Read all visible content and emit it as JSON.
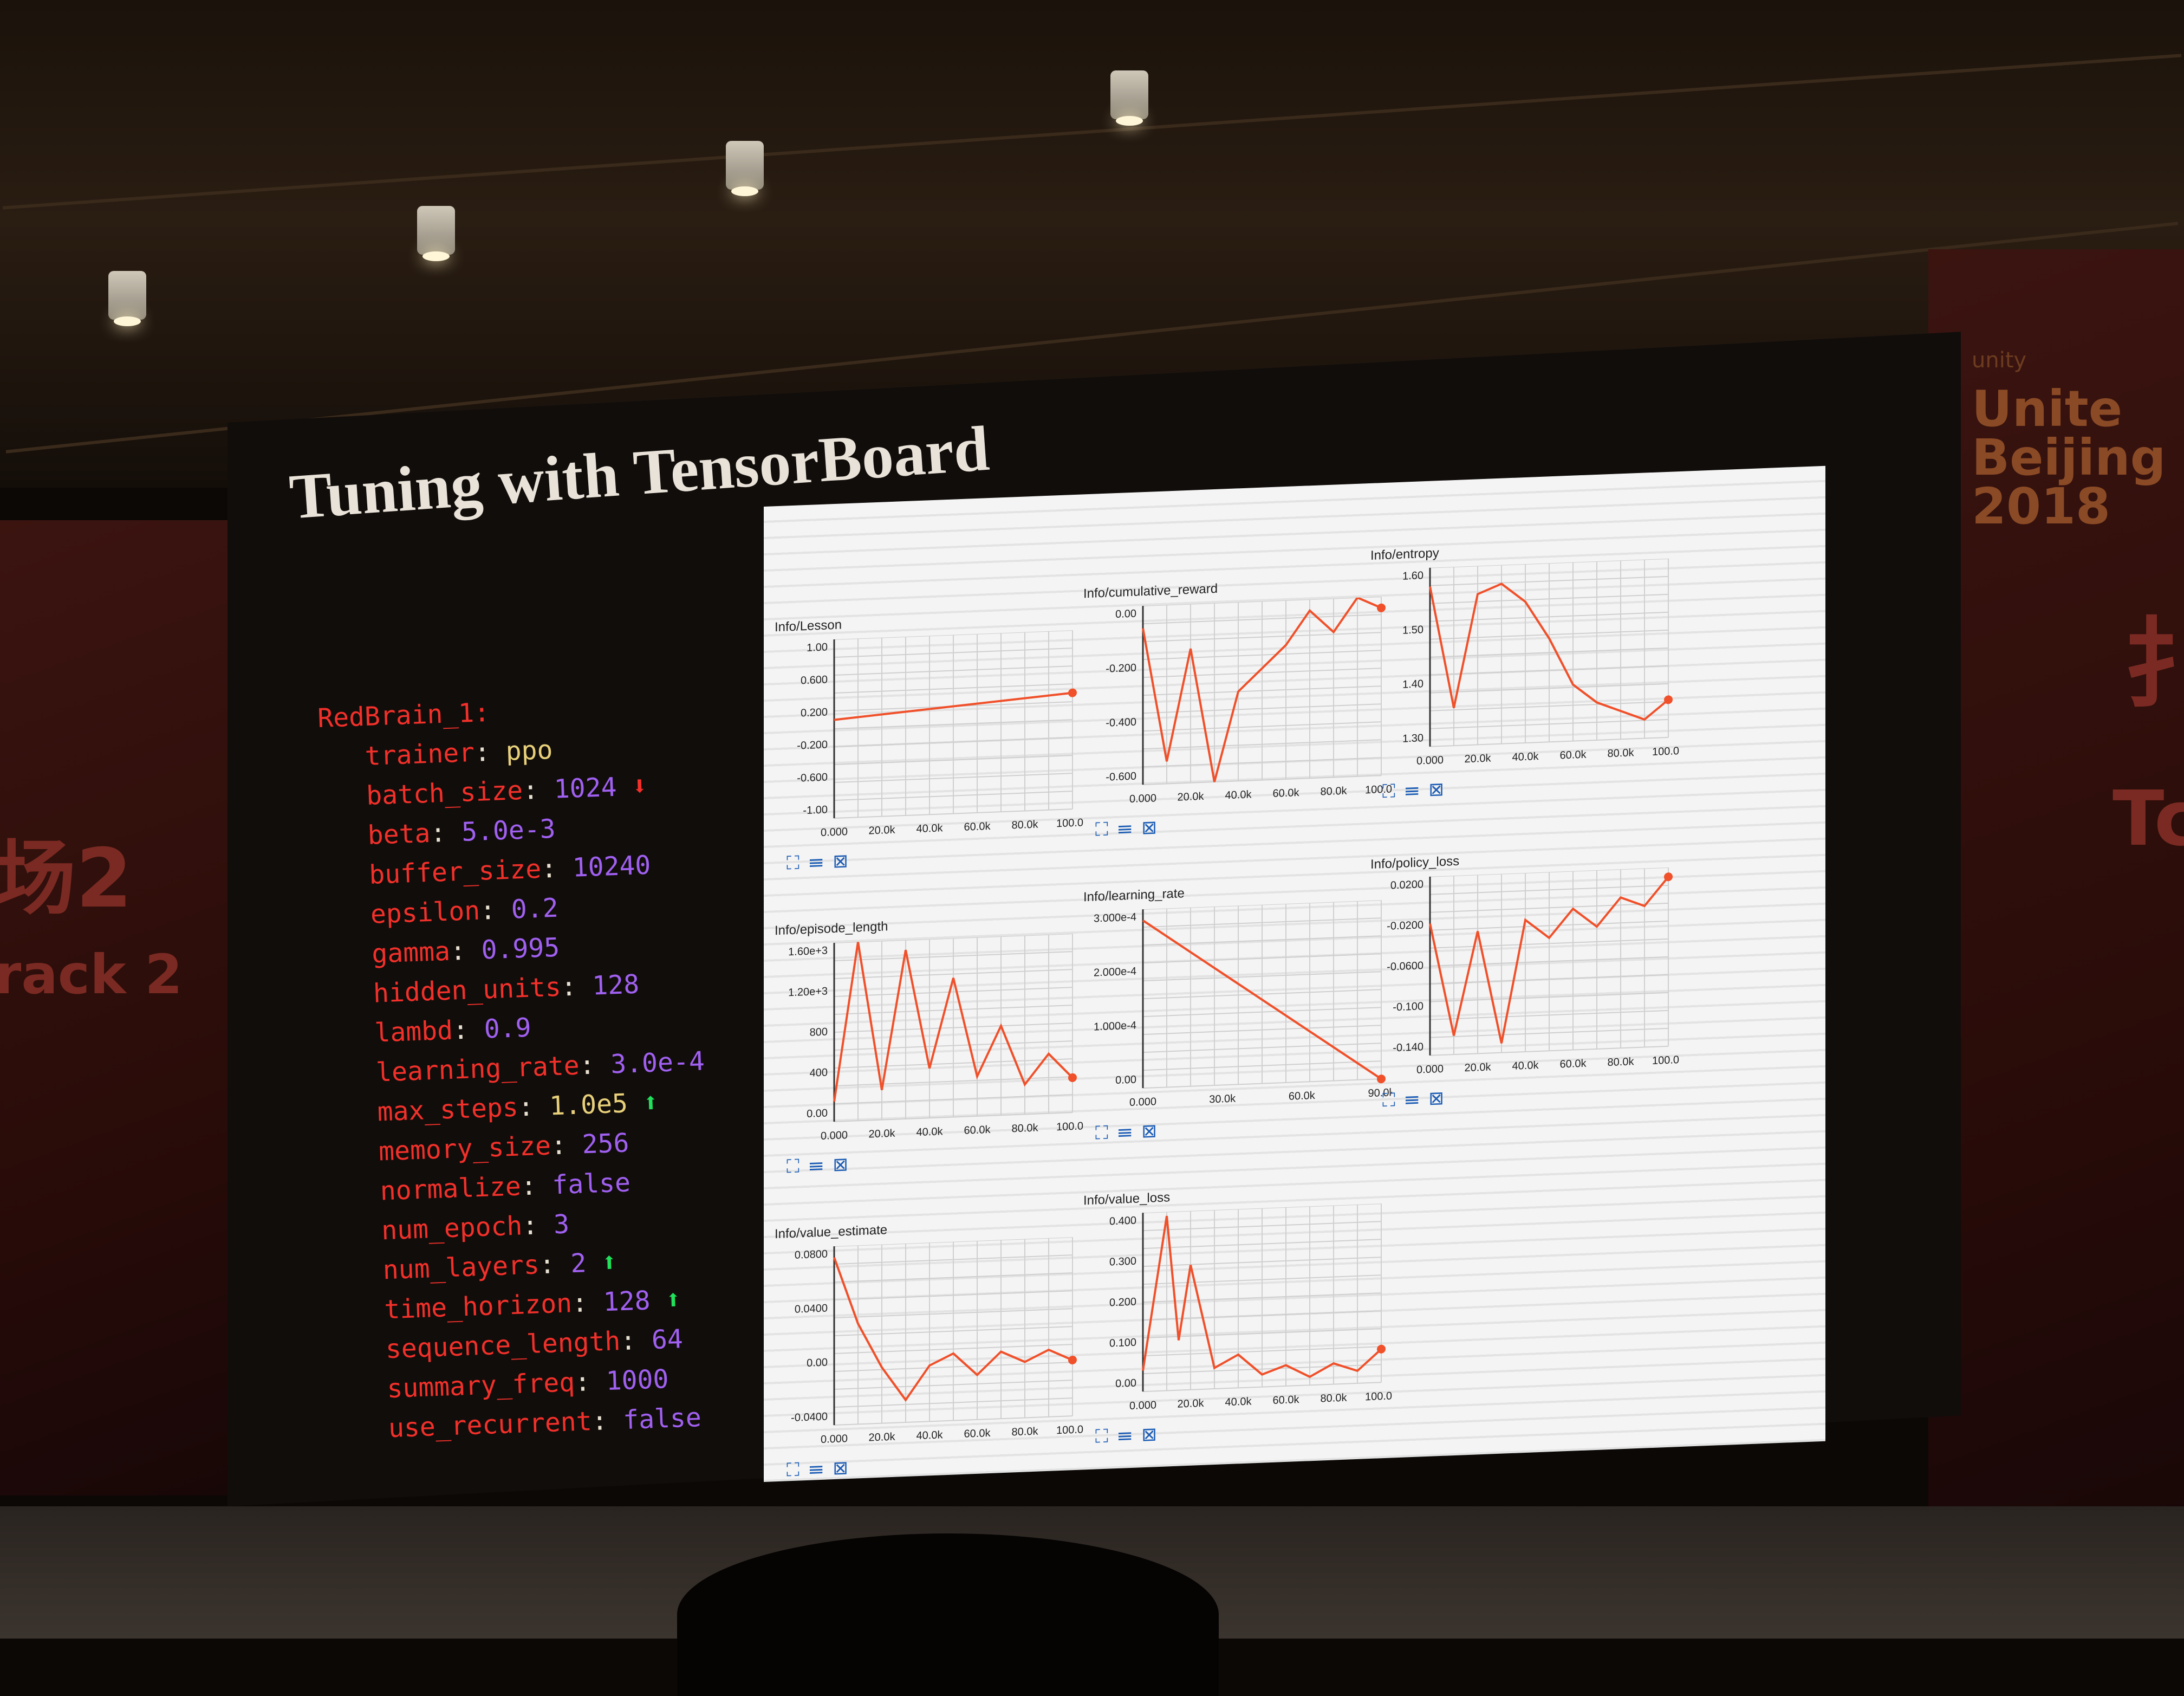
{
  "slide": {
    "title": "Tuning with TensorBoard"
  },
  "venue": {
    "brand_small": "unity",
    "brand_lines": [
      "Unite",
      "Beijing",
      "2018"
    ],
    "left_fragment_1": "场2",
    "left_fragment_2": "rack 2",
    "right_fragment_1": "扌",
    "right_fragment_2": "Tc"
  },
  "config": {
    "brain": "RedBrain_1",
    "params": [
      {
        "key": "trainer",
        "value": "ppo",
        "kind": "str",
        "arrow": ""
      },
      {
        "key": "batch_size",
        "value": "1024",
        "kind": "num",
        "arrow": "down"
      },
      {
        "key": "beta",
        "value": "5.0e-3",
        "kind": "num",
        "arrow": ""
      },
      {
        "key": "buffer_size",
        "value": "10240",
        "kind": "num",
        "arrow": ""
      },
      {
        "key": "epsilon",
        "value": "0.2",
        "kind": "num",
        "arrow": ""
      },
      {
        "key": "gamma",
        "value": "0.995",
        "kind": "num",
        "arrow": ""
      },
      {
        "key": "hidden_units",
        "value": "128",
        "kind": "num",
        "arrow": ""
      },
      {
        "key": "lambd",
        "value": "0.9",
        "kind": "num",
        "arrow": ""
      },
      {
        "key": "learning_rate",
        "value": "3.0e-4",
        "kind": "num",
        "arrow": ""
      },
      {
        "key": "max_steps",
        "value": "1.0e5",
        "kind": "str",
        "arrow": "up"
      },
      {
        "key": "memory_size",
        "value": "256",
        "kind": "num",
        "arrow": ""
      },
      {
        "key": "normalize",
        "value": "false",
        "kind": "num",
        "arrow": ""
      },
      {
        "key": "num_epoch",
        "value": "3",
        "kind": "num",
        "arrow": ""
      },
      {
        "key": "num_layers",
        "value": "2",
        "kind": "num",
        "arrow": "up"
      },
      {
        "key": "time_horizon",
        "value": "128",
        "kind": "num",
        "arrow": "up"
      },
      {
        "key": "sequence_length",
        "value": "64",
        "kind": "num",
        "arrow": ""
      },
      {
        "key": "summary_freq",
        "value": "1000",
        "kind": "num",
        "arrow": ""
      },
      {
        "key": "use_recurrent",
        "value": "false",
        "kind": "num",
        "arrow": ""
      }
    ],
    "arrow_up_glyph": "⬆",
    "arrow_down_glyph": "⬇"
  },
  "colors": {
    "key": "#f2302a",
    "string": "#e8d07a",
    "number": "#a060f0",
    "line": "#f0502a",
    "arrow_up": "#21e05a",
    "arrow_down": "#f2302a"
  },
  "chart_data": [
    {
      "type": "line",
      "title": "Info/Lesson",
      "x": [
        0,
        100000
      ],
      "y": [
        0.1,
        0.3
      ],
      "ylim": [
        -1.0,
        1.0
      ],
      "yticks": [
        "1.00",
        "0.600",
        "0.200",
        "-0.200",
        "-0.600",
        "-1.00"
      ],
      "xticks": [
        "0.000",
        "20.0k",
        "40.0k",
        "60.0k",
        "80.0k",
        "100.0k"
      ]
    },
    {
      "type": "line",
      "title": "Info/cumulative_reward",
      "x": [
        0,
        10000,
        20000,
        30000,
        40000,
        50000,
        60000,
        70000,
        80000,
        90000,
        100000
      ],
      "y": [
        0.0,
        -0.6,
        -0.1,
        -0.7,
        -0.3,
        -0.2,
        -0.1,
        0.05,
        -0.05,
        0.1,
        0.05
      ],
      "ylim": [
        -0.7,
        0.1
      ],
      "yticks": [
        "0.00",
        "-0.200",
        "-0.400",
        "-0.600"
      ],
      "xticks": [
        "0.000",
        "20.0k",
        "40.0k",
        "60.0k",
        "80.0k",
        "100.0k"
      ]
    },
    {
      "type": "line",
      "title": "Info/entropy",
      "x": [
        0,
        10000,
        20000,
        30000,
        40000,
        50000,
        60000,
        70000,
        80000,
        90000,
        100000
      ],
      "y": [
        1.62,
        1.36,
        1.6,
        1.62,
        1.58,
        1.5,
        1.4,
        1.36,
        1.34,
        1.32,
        1.36
      ],
      "ylim": [
        1.28,
        1.66
      ],
      "yticks": [
        "1.60",
        "1.50",
        "1.40",
        "1.30"
      ],
      "xticks": [
        "0.000",
        "20.0k",
        "40.0k",
        "60.0k",
        "80.0k",
        "100.0k"
      ]
    },
    {
      "type": "line",
      "title": "Info/episode_length",
      "x": [
        0,
        10000,
        20000,
        30000,
        40000,
        50000,
        60000,
        70000,
        80000,
        90000,
        100000
      ],
      "y": [
        200,
        1800,
        300,
        1700,
        500,
        1400,
        400,
        900,
        300,
        600,
        350
      ],
      "ylim": [
        0,
        1800
      ],
      "yticks": [
        "1.60e+3",
        "1.20e+3",
        "800",
        "400",
        "0.00"
      ],
      "xticks": [
        "0.000",
        "20.0k",
        "40.0k",
        "60.0k",
        "80.0k",
        "100.0k"
      ]
    },
    {
      "type": "line",
      "title": "Info/learning_rate",
      "x": [
        0,
        100000
      ],
      "y": [
        0.0003,
        0.0
      ],
      "ylim": [
        0,
        0.00032
      ],
      "yticks": [
        "3.000e-4",
        "2.000e-4",
        "1.000e-4",
        "0.00"
      ],
      "xticks": [
        "0.000",
        "30.0k",
        "60.0k",
        "90.0k"
      ]
    },
    {
      "type": "line",
      "title": "Info/policy_loss",
      "x": [
        0,
        10000,
        20000,
        30000,
        40000,
        50000,
        60000,
        70000,
        80000,
        90000,
        100000
      ],
      "y": [
        -0.02,
        -0.14,
        -0.03,
        -0.15,
        -0.02,
        -0.04,
        -0.01,
        -0.03,
        0.0,
        -0.01,
        0.02
      ],
      "ylim": [
        -0.16,
        0.03
      ],
      "yticks": [
        "0.0200",
        "-0.0200",
        "-0.0600",
        "-0.100",
        "-0.140"
      ],
      "xticks": [
        "0.000",
        "20.0k",
        "40.0k",
        "60.0k",
        "80.0k",
        "100.0k"
      ]
    },
    {
      "type": "line",
      "title": "Info/value_estimate",
      "x": [
        0,
        10000,
        20000,
        30000,
        40000,
        50000,
        60000,
        70000,
        80000,
        90000,
        100000
      ],
      "y": [
        0.09,
        0.03,
        -0.01,
        -0.04,
        -0.01,
        0.0,
        -0.02,
        0.0,
        -0.01,
        0.0,
        -0.01
      ],
      "ylim": [
        -0.06,
        0.1
      ],
      "yticks": [
        "0.0800",
        "0.0400",
        "0.00",
        "-0.0400"
      ],
      "xticks": [
        "0.000",
        "20.0k",
        "40.0k",
        "60.0k",
        "80.0k",
        "100.0k"
      ]
    },
    {
      "type": "line",
      "title": "Info/value_loss",
      "x": [
        0,
        10000,
        15000,
        20000,
        30000,
        40000,
        50000,
        60000,
        70000,
        80000,
        90000,
        100000
      ],
      "y": [
        0.05,
        0.42,
        0.12,
        0.3,
        0.05,
        0.08,
        0.03,
        0.05,
        0.02,
        0.05,
        0.03,
        0.08
      ],
      "ylim": [
        0,
        0.43
      ],
      "yticks": [
        "0.400",
        "0.300",
        "0.200",
        "0.100",
        "0.00"
      ],
      "xticks": [
        "0.000",
        "20.0k",
        "40.0k",
        "60.0k",
        "80.0k",
        "100.0k"
      ]
    }
  ],
  "chart_controls": [
    "⛶",
    "☰",
    "⊠"
  ]
}
